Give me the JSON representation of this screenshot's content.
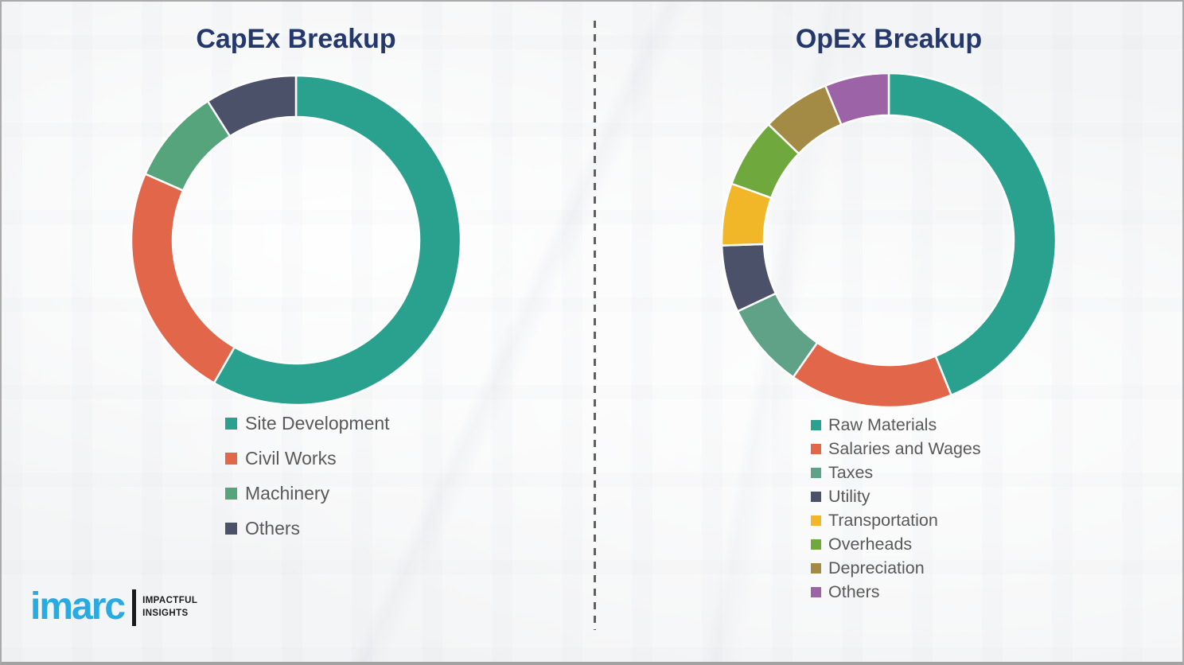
{
  "chart_data": [
    {
      "type": "pie",
      "donut": true,
      "title": "CapEx Breakup",
      "labels": [
        "Site Development",
        "Civil Works",
        "Machinery",
        "Others"
      ],
      "values": [
        58.3,
        23.3,
        9.4,
        9.0
      ],
      "colors": [
        "#2AA08F",
        "#E2664A",
        "#55A47B",
        "#4B5168"
      ],
      "start_angle_deg": 0,
      "direction": "clockwise",
      "legend_position": "below-left",
      "data_labels_shown": false
    },
    {
      "type": "pie",
      "donut": true,
      "title": "OpEx Breakup",
      "labels": [
        "Raw Materials",
        "Salaries and Wages",
        "Taxes",
        "Utility",
        "Transportation",
        "Overheads",
        "Depreciation",
        "Others"
      ],
      "values": [
        43.9,
        15.8,
        8.3,
        6.5,
        6.0,
        6.7,
        6.6,
        6.2
      ],
      "colors": [
        "#2AA08F",
        "#E2664A",
        "#5FA287",
        "#4B5168",
        "#F2B629",
        "#6FA83C",
        "#A38B45",
        "#9C63A6"
      ],
      "start_angle_deg": 0,
      "direction": "clockwise",
      "legend_position": "below-left",
      "data_labels_shown": false
    }
  ],
  "logo": {
    "brand": "imarc",
    "tagline": [
      "IMPACTFUL",
      "INSIGHTS"
    ],
    "brand_color": "#29ABE2",
    "tagline_color": "#1A1A1A"
  },
  "theme": {
    "title_color": "#24386B",
    "legend_text_color": "#595959",
    "divider_color": "#5F5F5F",
    "background_color": "#F5F6F7",
    "border_color": "#AAAAAA",
    "segment_gap_color": "#FFFFFF"
  }
}
